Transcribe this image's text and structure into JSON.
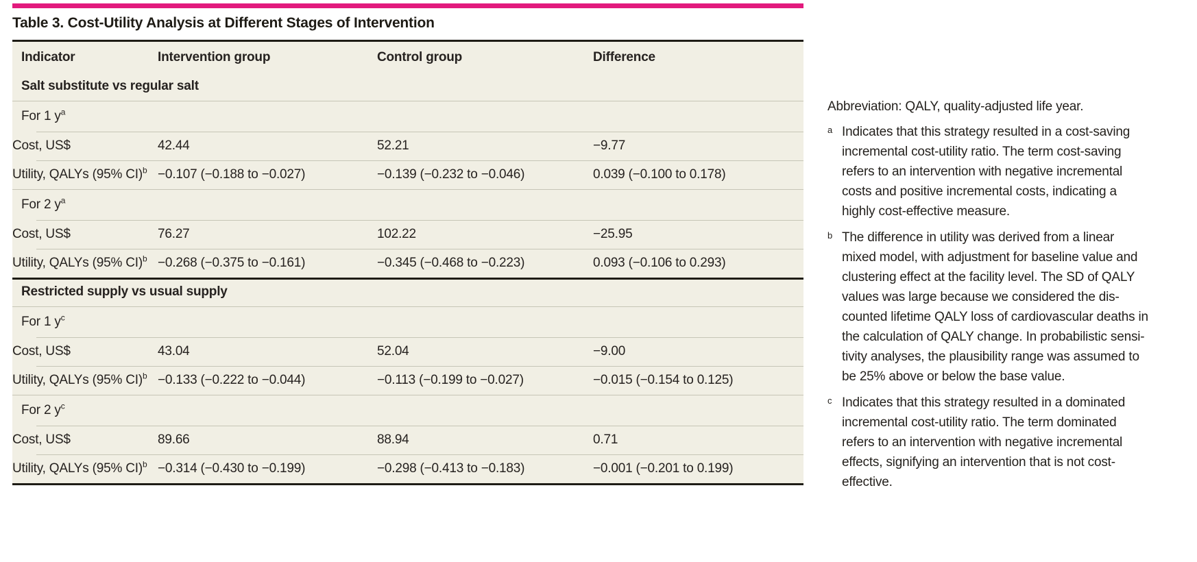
{
  "accent_color": "#e21a7d",
  "table": {
    "title": "Table 3. Cost-Utility Analysis at Different Stages of Intervention",
    "columns": [
      "Indicator",
      "Intervention group",
      "Control group",
      "Difference"
    ],
    "rows": [
      {
        "type": "section",
        "label": "Salt substitute vs regular salt"
      },
      {
        "type": "period",
        "label": "For 1 y",
        "sup": "a"
      },
      {
        "type": "data",
        "label": "Cost, US$",
        "values": [
          "42.44",
          "52.21",
          "−9.77"
        ]
      },
      {
        "type": "data",
        "label": "Utility, QALYs (95% CI)",
        "sup": "b",
        "values": [
          "−0.107 (−0.188 to −0.027)",
          "−0.139 (−0.232 to −0.046)",
          "0.039 (−0.100 to 0.178)"
        ]
      },
      {
        "type": "period",
        "label": "For 2 y",
        "sup": "a"
      },
      {
        "type": "data",
        "label": "Cost, US$",
        "values": [
          "76.27",
          "102.22",
          "−25.95"
        ]
      },
      {
        "type": "data",
        "label": "Utility, QALYs (95% CI)",
        "sup": "b",
        "values": [
          "−0.268 (−0.375 to −0.161)",
          "−0.345 (−0.468 to −0.223)",
          "0.093 (−0.106 to 0.293)"
        ]
      },
      {
        "type": "section",
        "label": "Restricted supply vs usual supply"
      },
      {
        "type": "period",
        "label": "For 1 y",
        "sup": "c"
      },
      {
        "type": "data",
        "label": "Cost, US$",
        "values": [
          "43.04",
          "52.04",
          "−9.00"
        ]
      },
      {
        "type": "data",
        "label": "Utility, QALYs (95% CI)",
        "sup": "b",
        "values": [
          "−0.133 (−0.222 to −0.044)",
          "−0.113 (−0.199 to −0.027)",
          "−0.015 (−0.154 to 0.125)"
        ]
      },
      {
        "type": "period",
        "label": "For 2 y",
        "sup": "c"
      },
      {
        "type": "data",
        "label": "Cost, US$",
        "values": [
          "89.66",
          "88.94",
          "0.71"
        ]
      },
      {
        "type": "data",
        "label": "Utility, QALYs (95% CI)",
        "sup": "b",
        "values": [
          "−0.314 (−0.430 to −0.199)",
          "−0.298 (−0.413 to −0.183)",
          "−0.001 (−0.201 to 0.199)"
        ]
      }
    ]
  },
  "footnotes": {
    "abbreviation": "Abbreviation: QALY, quality-adjusted life year.",
    "notes": [
      {
        "sup": "a",
        "lines": [
          "Indicates that this strategy resulted in a cost-saving",
          "incremental cost-utility ratio. The term cost-saving",
          "refers to an intervention with negative incremental",
          "costs and positive incremental costs, indicating a",
          "highly cost-effective measure."
        ]
      },
      {
        "sup": "b",
        "lines": [
          "The difference in utility was derived from a linear",
          "mixed model, with adjustment for baseline value and",
          "clustering effect at the facility level. The SD of QALY",
          "values was large because we considered the dis-",
          "counted lifetime QALY loss of cardiovascular deaths in",
          "the calculation of QALY change. In probabilistic sensi-",
          "tivity analyses, the plausibility range was assumed to",
          "be 25% above or below the base value."
        ]
      },
      {
        "sup": "c",
        "lines": [
          "Indicates that this strategy resulted in a dominated",
          "incremental cost-utility ratio. The term dominated",
          "refers to an intervention with negative incremental",
          "effects, signifying an intervention that is not cost-",
          "effective."
        ]
      }
    ]
  }
}
